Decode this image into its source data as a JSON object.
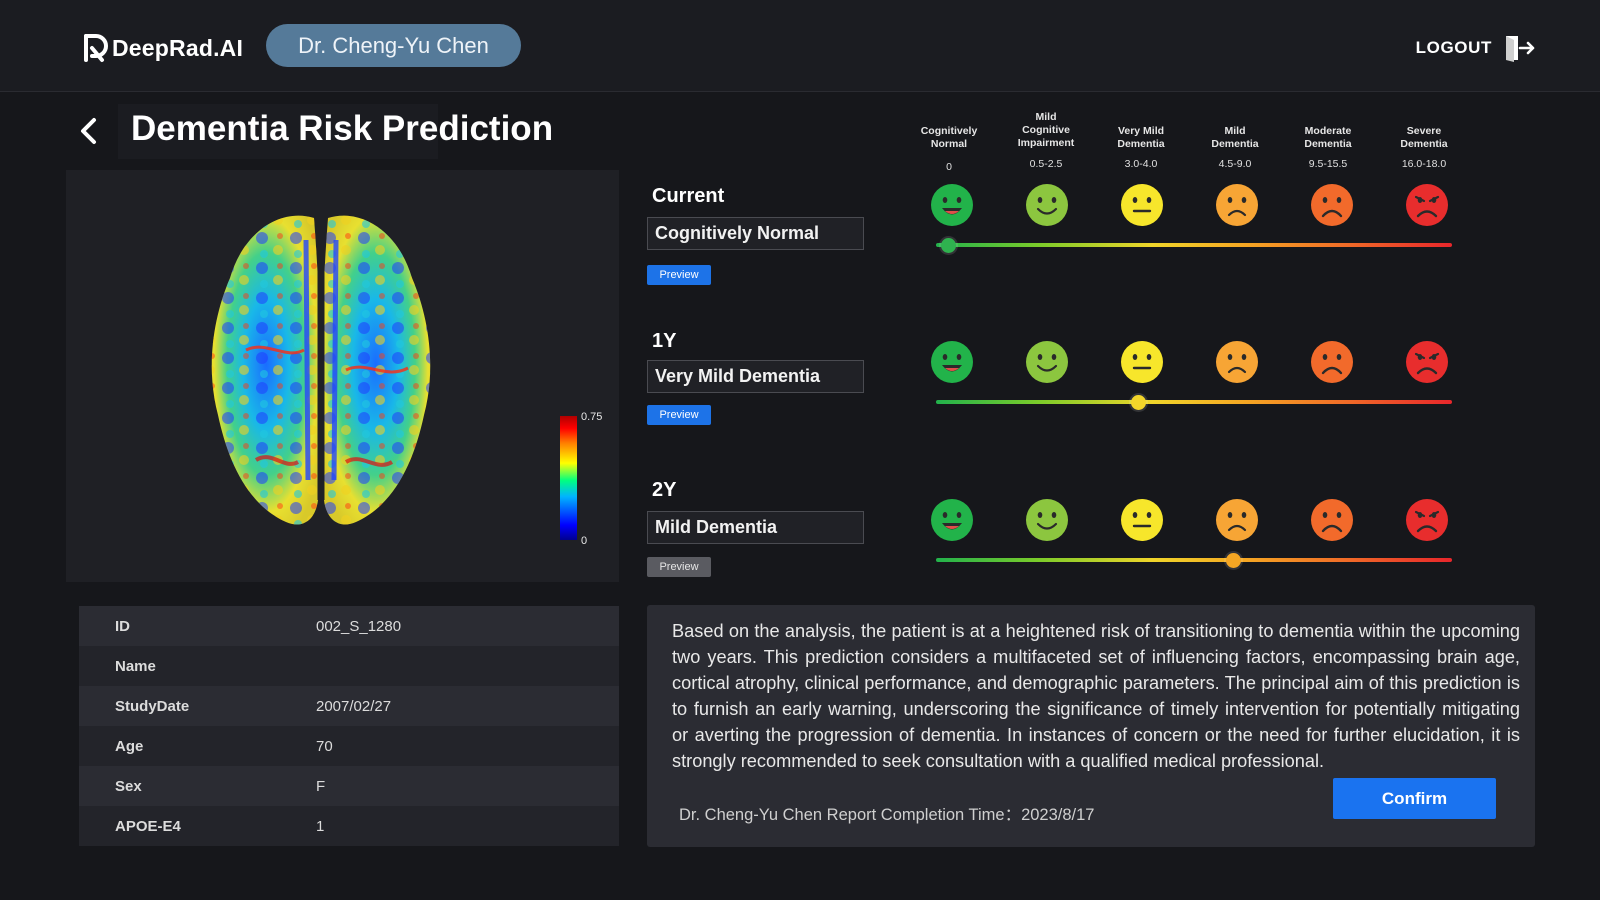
{
  "header": {
    "logo_text": "DeepRad.AI",
    "user_name": "Dr. Cheng-Yu Chen",
    "logout_label": "LOGOUT"
  },
  "page": {
    "title": "Dementia Risk Prediction"
  },
  "viewer": {
    "colorbar_max": "0.75",
    "colorbar_min": "0"
  },
  "patient": {
    "rows": [
      {
        "key": "ID",
        "value": "002_S_1280"
      },
      {
        "key": "Name",
        "value": ""
      },
      {
        "key": "StudyDate",
        "value": "2007/02/27"
      },
      {
        "key": "Age",
        "value": "70"
      },
      {
        "key": "Sex",
        "value": "F"
      },
      {
        "key": "APOE-E4",
        "value": "1"
      }
    ]
  },
  "scale": {
    "levels": [
      {
        "name_line1": "Cognitively",
        "name_line2": "Normal",
        "name_line3": "",
        "range": "0",
        "face_color": "#22b34a",
        "mood": "happy"
      },
      {
        "name_line1": "Mild",
        "name_line2": "Cognitive",
        "name_line3": "Impairment",
        "range": "0.5-2.5",
        "face_color": "#8cc63f",
        "mood": "smile"
      },
      {
        "name_line1": "Very Mild",
        "name_line2": "Dementia",
        "name_line3": "",
        "range": "3.0-4.0",
        "face_color": "#f7e62b",
        "mood": "neutral"
      },
      {
        "name_line1": "Mild",
        "name_line2": "Dementia",
        "name_line3": "",
        "range": "4.5-9.0",
        "face_color": "#f7a535",
        "mood": "frown"
      },
      {
        "name_line1": "Moderate",
        "name_line2": "Dementia",
        "name_line3": "",
        "range": "9.5-15.5",
        "face_color": "#f26a2b",
        "mood": "sad"
      },
      {
        "name_line1": "Severe",
        "name_line2": "Dementia",
        "name_line3": "",
        "range": "16.0-18.0",
        "face_color": "#e82d2d",
        "mood": "angry"
      }
    ]
  },
  "predictions": [
    {
      "label": "Current",
      "status": "Cognitively Normal",
      "preview_label": "Preview",
      "preview_style": "active",
      "level_index": 0,
      "knob_color": "#2fb24f"
    },
    {
      "label": "1Y",
      "status": "Very Mild Dementia",
      "preview_label": "Preview",
      "preview_style": "active",
      "level_index": 2,
      "knob_color": "#f2d52a"
    },
    {
      "label": "2Y",
      "status": "Mild Dementia",
      "preview_label": "Preview",
      "preview_style": "inactive",
      "level_index": 3,
      "knob_color": "#f5a623"
    }
  ],
  "summary": {
    "text": "Based on the analysis, the patient is at a heightened risk of transitioning to dementia within the upcoming two years. This prediction considers a multifaceted set of influencing factors, encompassing brain age, cortical atrophy, clinical performance, and demographic parameters. The principal aim of this prediction is to furnish an early warning, underscoring the significance of timely intervention for potentially mitigating or averting the progression of dementia. In instances of concern or the need for further elucidation, it is strongly recommended to seek consultation with a qualified medical professional.",
    "signature": "Dr. Cheng-Yu Chen  Report Completion Time：2023/8/17",
    "confirm_label": "Confirm"
  },
  "colors": {
    "accent": "#1a73f0",
    "user_pill": "#557a99",
    "background": "#16171b"
  }
}
